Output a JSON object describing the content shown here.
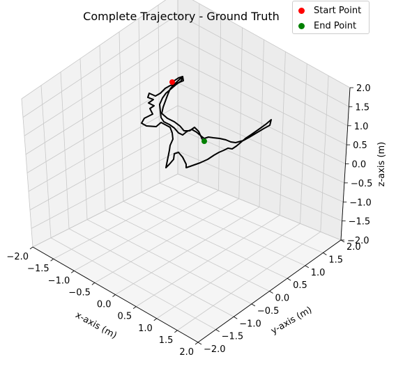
{
  "chart_data": {
    "type": "scatter",
    "title": "Complete Trajectory - Ground Truth",
    "xlabel": "x-axis (m)",
    "ylabel": "y-axis (m)",
    "zlabel": "z-axis (m)",
    "xlim": [
      -2.0,
      2.0
    ],
    "ylim": [
      -2.0,
      2.0
    ],
    "zlim": [
      -2.0,
      2.0
    ],
    "grid": true,
    "legend_position": "top-right",
    "x_ticks": [
      "−2.0",
      "−1.5",
      "−1.0",
      "−0.5",
      "0.0",
      "0.5",
      "1.0",
      "1.5",
      "2.0"
    ],
    "y_ticks": [
      "−2.0",
      "−1.5",
      "−1.0",
      "−0.5",
      "0.0",
      "0.5",
      "1.0",
      "1.5",
      "2.0"
    ],
    "z_ticks": [
      "−2.0",
      "−1.5",
      "−1.0",
      "−0.5",
      "0.0",
      "0.5",
      "1.0",
      "1.5",
      "2.0"
    ],
    "series": [
      {
        "name": "Start Point",
        "color": "#ff0000",
        "points": [
          [
            -0.6,
            0.0,
            1.5
          ]
        ]
      },
      {
        "name": "End Point",
        "color": "#008000",
        "points": [
          [
            0.3,
            0.2,
            0.45
          ]
        ]
      }
    ],
    "trajectory": {
      "color": "#000000",
      "points": [
        [
          -0.6,
          0.0,
          1.5
        ],
        [
          -0.55,
          0.1,
          1.65
        ],
        [
          -0.45,
          0.15,
          1.55
        ],
        [
          -0.6,
          0.05,
          1.35
        ],
        [
          -0.75,
          -0.05,
          1.1
        ],
        [
          -0.8,
          -0.1,
          0.85
        ],
        [
          -0.7,
          -0.1,
          0.7
        ],
        [
          -0.85,
          -0.2,
          0.55
        ],
        [
          -0.95,
          -0.3,
          0.35
        ],
        [
          -0.8,
          -0.2,
          0.25
        ],
        [
          -0.6,
          -0.1,
          0.2
        ],
        [
          -0.4,
          0.0,
          0.35
        ],
        [
          -0.2,
          0.1,
          0.45
        ],
        [
          0.0,
          0.15,
          0.5
        ],
        [
          0.3,
          0.2,
          0.45
        ]
      ]
    },
    "trajectory_path_2d": [
      [
        247,
        118
      ],
      [
        256,
        112
      ],
      [
        262,
        110
      ],
      [
        263,
        116
      ],
      [
        251,
        121
      ],
      [
        244,
        123
      ],
      [
        237,
        127
      ],
      [
        230,
        134
      ],
      [
        223,
        138
      ],
      [
        214,
        134
      ],
      [
        212,
        140
      ],
      [
        220,
        143
      ],
      [
        213,
        148
      ],
      [
        221,
        152
      ],
      [
        215,
        156
      ],
      [
        219,
        164
      ],
      [
        207,
        170
      ],
      [
        203,
        177
      ],
      [
        210,
        181
      ],
      [
        224,
        182
      ],
      [
        231,
        176
      ],
      [
        244,
        183
      ],
      [
        247,
        191
      ],
      [
        248,
        200
      ],
      [
        244,
        209
      ],
      [
        243,
        216
      ],
      [
        241,
        226
      ],
      [
        239,
        236
      ],
      [
        238,
        241
      ],
      [
        243,
        236
      ],
      [
        249,
        229
      ],
      [
        250,
        221
      ],
      [
        256,
        219
      ],
      [
        262,
        226
      ],
      [
        267,
        236
      ],
      [
        267,
        241
      ],
      [
        273,
        239
      ],
      [
        287,
        234
      ],
      [
        298,
        229
      ],
      [
        307,
        223
      ],
      [
        314,
        219
      ],
      [
        321,
        216
      ],
      [
        327,
        213
      ],
      [
        333,
        214
      ],
      [
        339,
        210
      ],
      [
        345,
        205
      ],
      [
        352,
        199
      ],
      [
        361,
        193
      ],
      [
        371,
        186
      ],
      [
        382,
        178
      ],
      [
        389,
        172
      ],
      [
        387,
        180
      ],
      [
        378,
        185
      ],
      [
        368,
        191
      ],
      [
        358,
        197
      ],
      [
        349,
        202
      ],
      [
        338,
        205
      ],
      [
        331,
        204
      ],
      [
        324,
        201
      ],
      [
        315,
        199
      ],
      [
        306,
        198
      ],
      [
        299,
        197
      ],
      [
        293,
        199
      ],
      [
        289,
        196
      ],
      [
        282,
        190
      ],
      [
        275,
        186
      ],
      [
        268,
        189
      ],
      [
        262,
        194
      ],
      [
        256,
        191
      ],
      [
        250,
        184
      ],
      [
        243,
        179
      ],
      [
        235,
        175
      ],
      [
        231,
        169
      ],
      [
        230,
        160
      ],
      [
        229,
        150
      ],
      [
        233,
        141
      ],
      [
        238,
        134
      ],
      [
        245,
        128
      ],
      [
        252,
        122
      ],
      [
        260,
        116
      ],
      [
        262,
        110
      ],
      [
        249,
        122
      ],
      [
        244,
        128
      ],
      [
        241,
        135
      ],
      [
        238,
        143
      ],
      [
        234,
        154
      ],
      [
        232,
        163
      ],
      [
        240,
        170
      ],
      [
        250,
        175
      ],
      [
        258,
        181
      ],
      [
        264,
        188
      ],
      [
        272,
        188
      ],
      [
        279,
        183
      ],
      [
        285,
        189
      ],
      [
        290,
        200
      ],
      [
        293,
        203
      ]
    ]
  }
}
